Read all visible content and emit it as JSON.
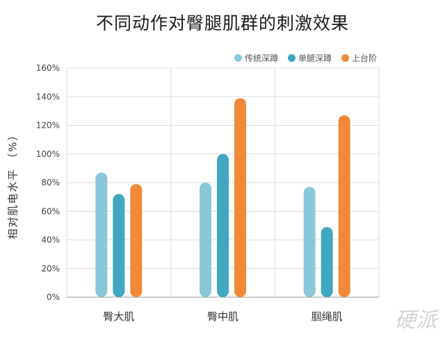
{
  "chart_data": {
    "type": "bar",
    "title": "不同动作对臀腿肌群的刺激效果",
    "ylabel": "相对肌电水平 （%）",
    "xlabel": "",
    "categories": [
      "臀大肌",
      "臀中肌",
      "腘绳肌"
    ],
    "ylim": [
      0,
      160
    ],
    "yticks": [
      0,
      20,
      40,
      60,
      80,
      100,
      120,
      140,
      160
    ],
    "ytick_labels": [
      "0%",
      "20%",
      "40%",
      "60%",
      "80%",
      "100%",
      "120%",
      "140%",
      "160%"
    ],
    "grid": true,
    "legend_position": "top-right",
    "series": [
      {
        "name": "传统深蹲",
        "color": "#8ac7d8",
        "values": [
          87,
          80,
          77
        ]
      },
      {
        "name": "单腿深蹲",
        "color": "#3fa8c0",
        "values": [
          72,
          100,
          49
        ]
      },
      {
        "name": "上台阶",
        "color": "#f08a3a",
        "values": [
          79,
          139,
          127
        ]
      }
    ]
  },
  "watermark": "硬派"
}
